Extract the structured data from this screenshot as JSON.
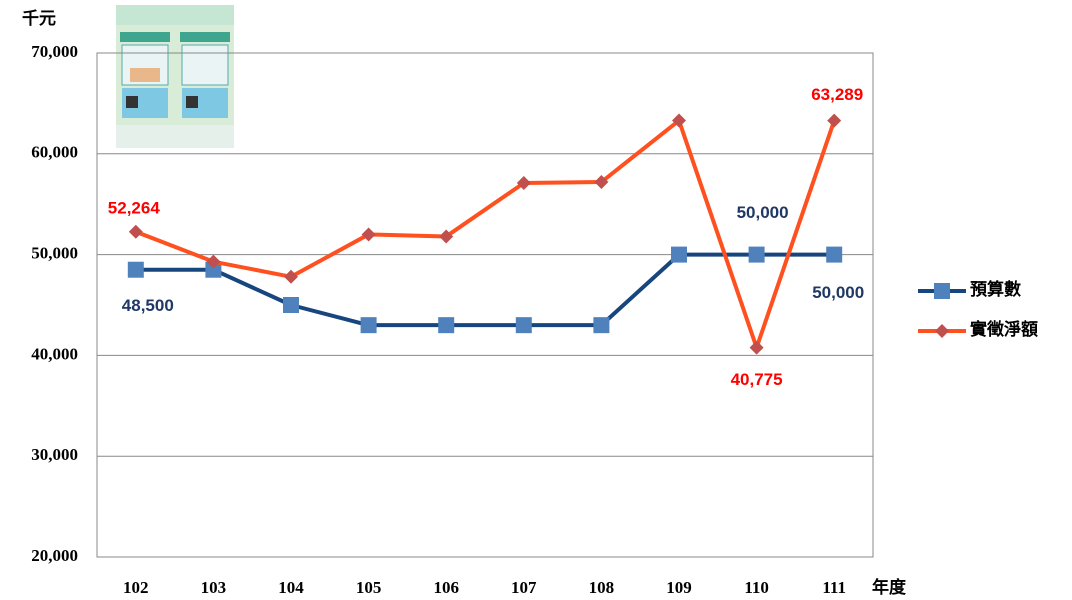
{
  "chart_data": {
    "type": "line",
    "y_unit": "千元",
    "x_unit": "年度",
    "categories": [
      "102",
      "103",
      "104",
      "105",
      "106",
      "107",
      "108",
      "109",
      "110",
      "111"
    ],
    "series": [
      {
        "name": "預算數",
        "color": "#17467e",
        "marker_color": "#4f81bd",
        "marker": "square",
        "values": [
          48500,
          48500,
          45000,
          43000,
          43000,
          43000,
          43000,
          50000,
          50000,
          50000
        ],
        "value_labels": [
          "48,500",
          null,
          null,
          null,
          null,
          null,
          null,
          null,
          "50,000",
          "50,000"
        ],
        "label_color": "#1f3864"
      },
      {
        "name": "實徵淨額",
        "color": "#ff5020",
        "marker_color": "#c0504d",
        "marker": "diamond",
        "values": [
          52264,
          49300,
          47800,
          52000,
          51800,
          57100,
          57200,
          63300,
          40775,
          63289
        ],
        "value_labels": [
          "52,264",
          null,
          null,
          null,
          null,
          null,
          null,
          null,
          "40,775",
          "63,289"
        ],
        "label_color": "#ff0000"
      }
    ],
    "ylim": [
      20000,
      70000
    ],
    "yticks": [
      {
        "value": 20000,
        "label": "20,000"
      },
      {
        "value": 30000,
        "label": "30,000"
      },
      {
        "value": 40000,
        "label": "40,000"
      },
      {
        "value": 50000,
        "label": "50,000"
      },
      {
        "value": 60000,
        "label": "60,000"
      },
      {
        "value": 70000,
        "label": "70,000"
      }
    ],
    "grid": true,
    "legend": "right"
  }
}
